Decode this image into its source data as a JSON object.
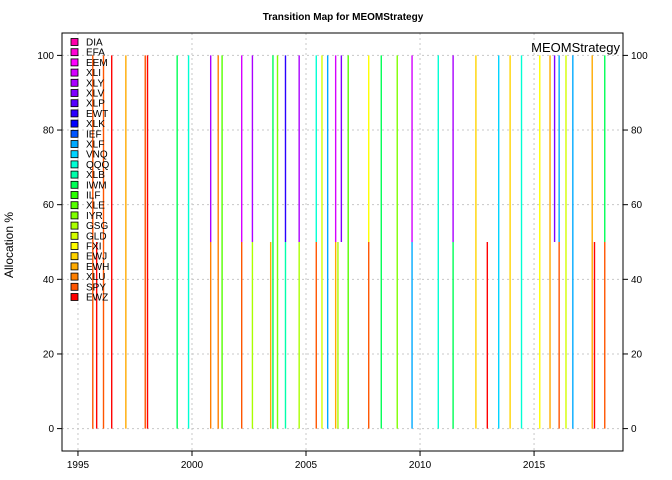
{
  "chart_data": {
    "type": "area",
    "title": "Transition Map for MEOMStrategy",
    "ylabel": "Allocation %",
    "xlabel": "",
    "strategy_label": "MEOMStrategy",
    "xlim": [
      1994.3,
      2018.9
    ],
    "ylim": [
      -6,
      106
    ],
    "x_ticks": [
      1995,
      2000,
      2005,
      2010,
      2015
    ],
    "y_ticks": [
      0,
      20,
      40,
      60,
      80,
      100
    ],
    "grid": true,
    "legend_position": "top-left",
    "series": [
      {
        "name": "DIA",
        "color": "#ff00aa"
      },
      {
        "name": "EFA",
        "color": "#ff00d4"
      },
      {
        "name": "EEM",
        "color": "#ff00ff"
      },
      {
        "name": "XLI",
        "color": "#d400ff"
      },
      {
        "name": "XLY",
        "color": "#aa00ff"
      },
      {
        "name": "XLV",
        "color": "#7f00ff"
      },
      {
        "name": "XLP",
        "color": "#5500ff"
      },
      {
        "name": "EWT",
        "color": "#2a00ff"
      },
      {
        "name": "XLK",
        "color": "#0000ff"
      },
      {
        "name": "IEF",
        "color": "#0055ff"
      },
      {
        "name": "XLF",
        "color": "#00aaff"
      },
      {
        "name": "VNQ",
        "color": "#00d4ff"
      },
      {
        "name": "QQQ",
        "color": "#00ffd4"
      },
      {
        "name": "XLB",
        "color": "#00ffaa"
      },
      {
        "name": "IWM",
        "color": "#00ff55"
      },
      {
        "name": "ILF",
        "color": "#2aff00"
      },
      {
        "name": "XLE",
        "color": "#55ff00"
      },
      {
        "name": "IYR",
        "color": "#7fff00"
      },
      {
        "name": "GSG",
        "color": "#aaff00"
      },
      {
        "name": "GLD",
        "color": "#d4ff00"
      },
      {
        "name": "FXI",
        "color": "#ffff00"
      },
      {
        "name": "EWJ",
        "color": "#ffd400"
      },
      {
        "name": "EWH",
        "color": "#ffaa00"
      },
      {
        "name": "XLU",
        "color": "#ff7f00"
      },
      {
        "name": "SPY",
        "color": "#ff5500"
      },
      {
        "name": "EWZ",
        "color": "#ff0000"
      }
    ],
    "transitions": [
      {
        "x": 1995.65,
        "color": "#ff5500",
        "y0": 0,
        "y1": 100
      },
      {
        "x": 1995.82,
        "color": "#ff0000",
        "y0": 0,
        "y1": 50
      },
      {
        "x": 1996.12,
        "color": "#ff5500",
        "y0": 0,
        "y1": 100
      },
      {
        "x": 1996.48,
        "color": "#ff0000",
        "y0": 0,
        "y1": 100
      },
      {
        "x": 1997.1,
        "color": "#ffaa00",
        "y0": 0,
        "y1": 100
      },
      {
        "x": 1997.95,
        "color": "#ff5500",
        "y0": 0,
        "y1": 100
      },
      {
        "x": 1998.05,
        "color": "#ff0000",
        "y0": 0,
        "y1": 100
      },
      {
        "x": 1999.35,
        "color": "#00ff55",
        "y0": 0,
        "y1": 100
      },
      {
        "x": 1999.85,
        "color": "#00ffd4",
        "y0": 0,
        "y1": 100
      },
      {
        "x": 2000.82,
        "color": "#ff7f00",
        "y0": 0,
        "y1": 50
      },
      {
        "x": 2000.82,
        "color": "#aa00ff",
        "y0": 50,
        "y1": 100
      },
      {
        "x": 2001.15,
        "color": "#ff7f00",
        "y0": 0,
        "y1": 100
      },
      {
        "x": 2001.32,
        "color": "#55ff00",
        "y0": 0,
        "y1": 100
      },
      {
        "x": 2002.18,
        "color": "#ff5500",
        "y0": 0,
        "y1": 50
      },
      {
        "x": 2002.18,
        "color": "#d400ff",
        "y0": 50,
        "y1": 100
      },
      {
        "x": 2002.65,
        "color": "#aaff00",
        "y0": 0,
        "y1": 50
      },
      {
        "x": 2002.65,
        "color": "#aa00ff",
        "y0": 50,
        "y1": 100
      },
      {
        "x": 2003.45,
        "color": "#ffaa00",
        "y0": 0,
        "y1": 50
      },
      {
        "x": 2003.55,
        "color": "#00ff55",
        "y0": 0,
        "y1": 100
      },
      {
        "x": 2003.75,
        "color": "#7fff00",
        "y0": 0,
        "y1": 100
      },
      {
        "x": 2004.1,
        "color": "#00ffaa",
        "y0": 0,
        "y1": 50
      },
      {
        "x": 2004.1,
        "color": "#2a00ff",
        "y0": 50,
        "y1": 100
      },
      {
        "x": 2004.7,
        "color": "#aaff00",
        "y0": 0,
        "y1": 50
      },
      {
        "x": 2004.7,
        "color": "#aa00ff",
        "y0": 50,
        "y1": 100
      },
      {
        "x": 2005.45,
        "color": "#ff5500",
        "y0": 0,
        "y1": 50
      },
      {
        "x": 2005.45,
        "color": "#00ffd4",
        "y0": 50,
        "y1": 100
      },
      {
        "x": 2005.7,
        "color": "#d4ff00",
        "y0": 0,
        "y1": 100
      },
      {
        "x": 2005.95,
        "color": "#00aaff",
        "y0": 0,
        "y1": 100
      },
      {
        "x": 2006.3,
        "color": "#ffaa00",
        "y0": 0,
        "y1": 50
      },
      {
        "x": 2006.3,
        "color": "#d400ff",
        "y0": 50,
        "y1": 100
      },
      {
        "x": 2006.55,
        "color": "#7f00ff",
        "y0": 50,
        "y1": 100
      },
      {
        "x": 2006.4,
        "color": "#aaff00",
        "y0": 0,
        "y1": 50
      },
      {
        "x": 2006.85,
        "color": "#55ff00",
        "y0": 0,
        "y1": 100
      },
      {
        "x": 2007.75,
        "color": "#ff5500",
        "y0": 0,
        "y1": 50
      },
      {
        "x": 2007.75,
        "color": "#ffff00",
        "y0": 50,
        "y1": 100
      },
      {
        "x": 2008.3,
        "color": "#00ff55",
        "y0": 0,
        "y1": 100
      },
      {
        "x": 2009.0,
        "color": "#7fff00",
        "y0": 0,
        "y1": 100
      },
      {
        "x": 2009.65,
        "color": "#00aaff",
        "y0": 0,
        "y1": 50
      },
      {
        "x": 2009.65,
        "color": "#d400ff",
        "y0": 50,
        "y1": 100
      },
      {
        "x": 2010.8,
        "color": "#00ffd4",
        "y0": 0,
        "y1": 100
      },
      {
        "x": 2011.45,
        "color": "#00ff55",
        "y0": 0,
        "y1": 50
      },
      {
        "x": 2011.45,
        "color": "#aa00ff",
        "y0": 50,
        "y1": 100
      },
      {
        "x": 2012.45,
        "color": "#ffd400",
        "y0": 0,
        "y1": 100
      },
      {
        "x": 2012.95,
        "color": "#ff0000",
        "y0": 0,
        "y1": 50
      },
      {
        "x": 2013.45,
        "color": "#00d4ff",
        "y0": 0,
        "y1": 100
      },
      {
        "x": 2013.95,
        "color": "#ffd400",
        "y0": 0,
        "y1": 100
      },
      {
        "x": 2014.45,
        "color": "#00ffd4",
        "y0": 0,
        "y1": 100
      },
      {
        "x": 2015.25,
        "color": "#ffff00",
        "y0": 0,
        "y1": 100
      },
      {
        "x": 2015.7,
        "color": "#ffaa00",
        "y0": 0,
        "y1": 100
      },
      {
        "x": 2015.9,
        "color": "#7f00ff",
        "y0": 50,
        "y1": 100
      },
      {
        "x": 2016.1,
        "color": "#ff5500",
        "y0": 0,
        "y1": 50
      },
      {
        "x": 2016.1,
        "color": "#00aaff",
        "y0": 50,
        "y1": 100
      },
      {
        "x": 2016.4,
        "color": "#d4ff00",
        "y0": 0,
        "y1": 100
      },
      {
        "x": 2016.7,
        "color": "#00aaff",
        "y0": 0,
        "y1": 100
      },
      {
        "x": 2017.55,
        "color": "#ffaa00",
        "y0": 0,
        "y1": 100
      },
      {
        "x": 2017.65,
        "color": "#ff0000",
        "y0": 0,
        "y1": 50
      },
      {
        "x": 2018.1,
        "color": "#ff5500",
        "y0": 0,
        "y1": 50
      },
      {
        "x": 2018.1,
        "color": "#00ff55",
        "y0": 50,
        "y1": 100
      }
    ]
  }
}
